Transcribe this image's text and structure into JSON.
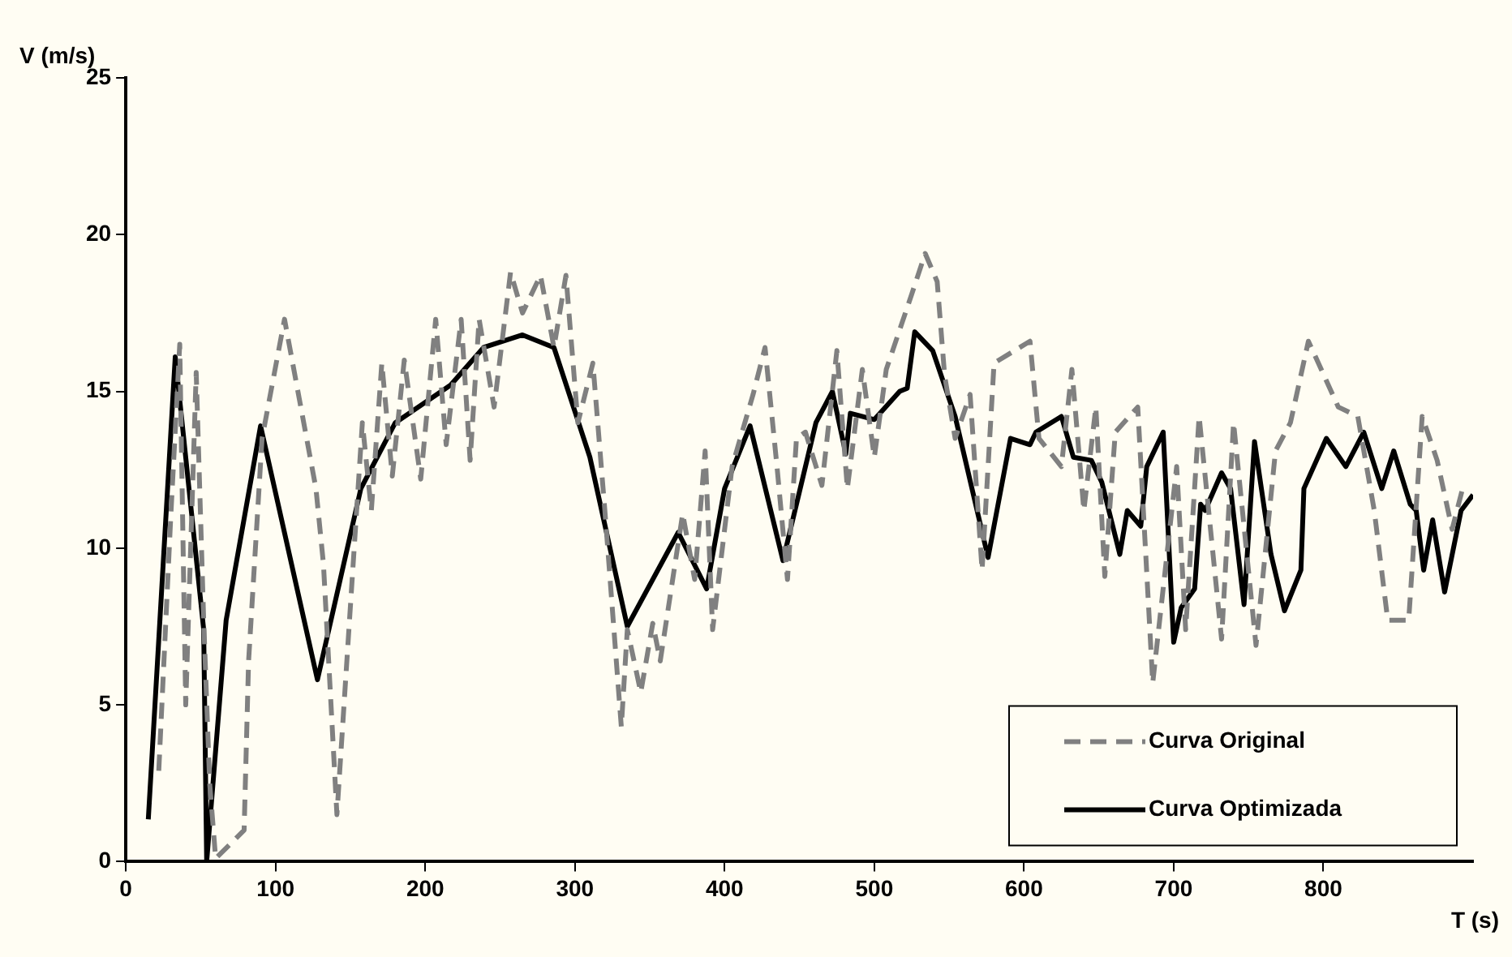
{
  "chart_data": {
    "type": "line",
    "xlabel": "T (s)",
    "ylabel": "V (m/s)",
    "xlim": [
      0,
      900
    ],
    "xticks": [
      0,
      100,
      200,
      300,
      400,
      500,
      600,
      700,
      800
    ],
    "ylim": [
      0,
      25
    ],
    "yticks": [
      0,
      5,
      10,
      15,
      20,
      25
    ],
    "grid": false,
    "legend": "bottom right",
    "marker": "none",
    "series": [
      {
        "name": "Curva Original",
        "color": "#808080",
        "line_style": "dashed",
        "x": [
          22,
          30,
          36,
          40,
          47,
          52,
          56,
          60,
          79,
          82,
          91,
          106,
          127,
          132,
          141,
          149,
          158,
          164,
          171,
          178,
          186,
          197,
          207,
          214,
          224,
          230,
          236,
          246,
          257,
          265,
          277,
          286,
          294,
          302,
          312,
          320,
          331,
          335,
          344,
          352,
          357,
          372,
          380,
          387,
          392,
          405,
          419,
          427,
          435,
          442,
          448,
          454,
          465,
          475,
          482,
          492,
          500,
          508,
          525,
          534,
          542,
          547,
          554,
          564,
          572,
          580,
          604,
          610,
          625,
          632,
          640,
          648,
          654,
          661,
          676,
          686,
          702,
          708,
          717,
          732,
          740,
          755,
          768,
          778,
          790,
          810,
          823,
          834,
          843,
          857,
          866,
          876,
          886,
          893
        ],
        "values": [
          2.9,
          11,
          16.5,
          5,
          15.6,
          7.7,
          2.5,
          0.1,
          1,
          6.4,
          13.5,
          17.3,
          11.9,
          9.5,
          1.5,
          7.4,
          14,
          11.2,
          15.9,
          12.3,
          16,
          12.2,
          17.3,
          13.3,
          17.3,
          12.8,
          17.3,
          14.5,
          18.8,
          17.5,
          18.7,
          16.4,
          18.7,
          14,
          15.9,
          11.2,
          4.3,
          7.4,
          5.4,
          7.6,
          6.4,
          11.1,
          9,
          13.1,
          7.4,
          12.6,
          14.9,
          16.4,
          12.6,
          9,
          13.5,
          13.7,
          12,
          16.3,
          11.9,
          15.7,
          12.9,
          15.7,
          18.1,
          19.4,
          18.5,
          15.5,
          13.5,
          14.9,
          9.3,
          15.9,
          16.6,
          13.5,
          12.6,
          15.7,
          11.2,
          14.5,
          9.1,
          13.7,
          14.5,
          5.7,
          12.6,
          7.4,
          14.2,
          7.1,
          14,
          6.9,
          13.1,
          14,
          16.6,
          14.5,
          14.2,
          11.2,
          7.7,
          7.7,
          14.2,
          12.8,
          10.6,
          11.9
        ]
      },
      {
        "name": "Curva Optimizada",
        "color": "#000000",
        "line_style": "solid",
        "x": [
          15,
          33,
          52,
          54,
          67,
          90,
          128,
          157,
          180,
          217,
          239,
          265,
          286,
          310,
          335,
          369,
          388,
          400,
          417,
          439,
          461,
          472,
          481,
          484,
          500,
          517,
          522,
          527,
          539,
          554,
          576,
          591,
          604,
          608,
          625,
          633,
          645,
          652,
          664,
          669,
          678,
          682,
          693,
          700,
          705,
          714,
          718,
          721,
          732,
          738,
          747,
          754,
          765,
          774,
          785,
          787,
          802,
          815,
          827,
          839,
          847,
          858,
          862,
          867,
          873,
          881,
          892,
          900
        ],
        "values": [
          1.35,
          16.1,
          7.4,
          0,
          7.7,
          13.9,
          5.8,
          11.9,
          14,
          15.2,
          16.4,
          16.8,
          16.4,
          12.9,
          7.5,
          10.5,
          8.7,
          11.9,
          13.9,
          9.6,
          14,
          15,
          13,
          14.3,
          14.1,
          15,
          15.1,
          16.9,
          16.3,
          14.2,
          9.7,
          13.5,
          13.3,
          13.7,
          14.2,
          12.9,
          12.8,
          12.1,
          9.8,
          11.2,
          10.7,
          12.6,
          13.7,
          7,
          8.1,
          8.7,
          11.4,
          11.2,
          12.4,
          11.9,
          8.2,
          13.4,
          9.8,
          8,
          9.3,
          11.9,
          13.5,
          12.6,
          13.7,
          11.9,
          13.1,
          11.4,
          11.2,
          9.3,
          10.9,
          8.6,
          11.2,
          11.7
        ]
      }
    ]
  }
}
